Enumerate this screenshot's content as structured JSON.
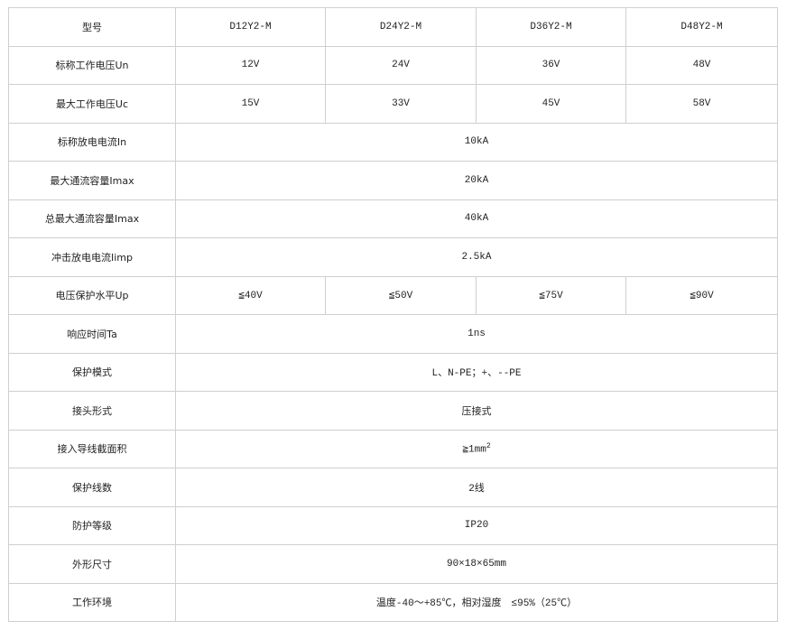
{
  "header": {
    "label": "型号",
    "models": [
      "D12Y2-M",
      "D24Y2-M",
      "D36Y2-M",
      "D48Y2-M"
    ]
  },
  "rows": [
    {
      "label": "标称工作电压Un",
      "values": [
        "12V",
        "24V",
        "36V",
        "48V"
      ]
    },
    {
      "label": "最大工作电压Uc",
      "values": [
        "15V",
        "33V",
        "45V",
        "58V"
      ]
    },
    {
      "label": "标称放电电流In",
      "value": "10kA"
    },
    {
      "label": "最大通流容量Imax",
      "value": "20kA"
    },
    {
      "label": "总最大通流容量Imax",
      "value": "40kA"
    },
    {
      "label": "冲击放电电流Iimp",
      "value": "2.5kA"
    },
    {
      "label": "电压保护水平Up",
      "values": [
        "≦40V",
        "≦50V",
        "≦75V",
        "≦90V"
      ]
    },
    {
      "label": "响应时间Ta",
      "value": "1ns"
    },
    {
      "label": "保护模式",
      "value": "L、N-PE；+、--PE"
    },
    {
      "label": "接头形式",
      "value": "压接式"
    },
    {
      "label": "接入导线截面积",
      "value": "≧1mm",
      "superscript": "2"
    },
    {
      "label": "保护线数",
      "value": "2线"
    },
    {
      "label": "防护等级",
      "value": "IP20"
    },
    {
      "label": "外形尺寸",
      "value": "90×18×65mm"
    },
    {
      "label": "工作环境",
      "value": "温度-40～+85℃，相对湿度　≤95%（25℃）"
    }
  ]
}
